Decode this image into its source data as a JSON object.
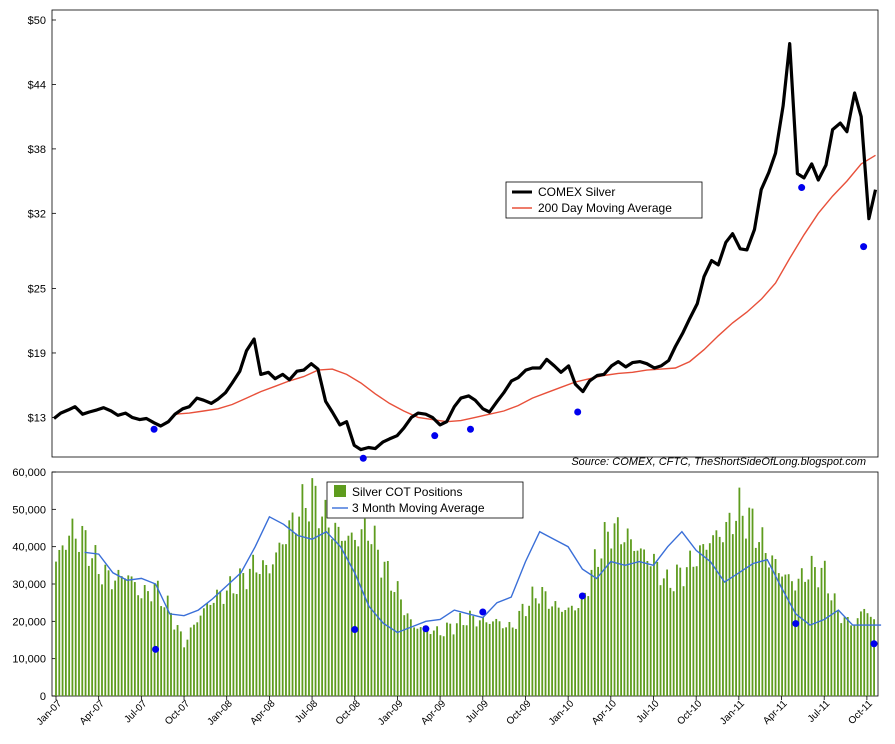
{
  "chart_data": [
    {
      "type": "line",
      "y_tick_labels": [
        "$13",
        "$19",
        "$25",
        "$32",
        "$38",
        "$44",
        "$50"
      ],
      "ylim": [
        9.5,
        50
      ],
      "y_ticks": [
        13,
        19,
        25,
        32,
        38,
        44,
        50
      ],
      "x_start": "2007-01",
      "x_end": "2011-10",
      "grid": false,
      "legend": {
        "placement": "center-right"
      },
      "source": "Source: COMEX, CFTC, TheShortSideOfLong.blogspot.com",
      "series": [
        {
          "name": "COMEX Silver",
          "color": "#000000",
          "x": [
            "2007-01-01",
            "2007-01-15",
            "2007-02-01",
            "2007-02-15",
            "2007-03-01",
            "2007-03-15",
            "2007-04-01",
            "2007-04-15",
            "2007-05-01",
            "2007-05-15",
            "2007-06-01",
            "2007-06-15",
            "2007-07-01",
            "2007-07-15",
            "2007-08-01",
            "2007-08-15",
            "2007-09-01",
            "2007-09-15",
            "2007-10-01",
            "2007-10-15",
            "2007-11-01",
            "2007-11-15",
            "2007-12-01",
            "2007-12-15",
            "2008-01-01",
            "2008-01-15",
            "2008-02-01",
            "2008-02-15",
            "2008-03-01",
            "2008-03-15",
            "2008-04-01",
            "2008-04-15",
            "2008-05-01",
            "2008-05-15",
            "2008-06-01",
            "2008-06-15",
            "2008-07-01",
            "2008-07-15",
            "2008-08-01",
            "2008-08-15",
            "2008-09-01",
            "2008-09-15",
            "2008-10-01",
            "2008-10-15",
            "2008-11-01",
            "2008-11-15",
            "2008-12-01",
            "2008-12-15",
            "2009-01-01",
            "2009-01-15",
            "2009-02-01",
            "2009-02-15",
            "2009-03-01",
            "2009-03-15",
            "2009-04-01",
            "2009-04-15",
            "2009-05-01",
            "2009-05-15",
            "2009-06-01",
            "2009-06-15",
            "2009-07-01",
            "2009-07-15",
            "2009-08-01",
            "2009-08-15",
            "2009-09-01",
            "2009-09-15",
            "2009-10-01",
            "2009-10-15",
            "2009-11-01",
            "2009-11-15",
            "2009-12-01",
            "2009-12-15",
            "2010-01-01",
            "2010-01-15",
            "2010-02-01",
            "2010-02-15",
            "2010-03-01",
            "2010-03-15",
            "2010-04-01",
            "2010-04-15",
            "2010-05-01",
            "2010-05-15",
            "2010-06-01",
            "2010-06-15",
            "2010-07-01",
            "2010-07-15",
            "2010-08-01",
            "2010-08-15",
            "2010-09-01",
            "2010-09-15",
            "2010-10-01",
            "2010-10-15",
            "2010-11-01",
            "2010-11-15",
            "2010-12-01",
            "2010-12-15",
            "2011-01-01",
            "2011-01-15",
            "2011-02-01",
            "2011-02-15",
            "2011-03-01",
            "2011-03-15",
            "2011-04-01",
            "2011-04-15",
            "2011-05-01",
            "2011-05-15",
            "2011-06-01",
            "2011-06-15",
            "2011-07-01",
            "2011-07-15",
            "2011-08-01",
            "2011-08-15",
            "2011-09-01",
            "2011-09-15",
            "2011-10-01",
            "2011-10-15"
          ],
          "values": [
            12.9,
            13.4,
            13.7,
            14.0,
            13.3,
            13.5,
            13.7,
            13.9,
            13.6,
            13.2,
            13.4,
            13.0,
            12.8,
            12.9,
            12.5,
            12.2,
            12.6,
            13.3,
            13.8,
            14.0,
            14.8,
            14.6,
            14.3,
            14.7,
            15.3,
            16.2,
            17.3,
            19.2,
            20.3,
            17.0,
            17.2,
            16.6,
            17.0,
            16.5,
            17.3,
            17.4,
            18.0,
            17.5,
            14.5,
            13.5,
            12.3,
            12.6,
            10.4,
            10.0,
            10.2,
            10.1,
            10.7,
            11.0,
            11.3,
            12.0,
            13.0,
            13.4,
            13.3,
            13.0,
            12.3,
            12.6,
            14.0,
            14.8,
            15.0,
            14.6,
            13.8,
            13.5,
            14.5,
            15.3,
            16.4,
            16.7,
            17.4,
            17.6,
            17.6,
            18.4,
            17.8,
            17.2,
            17.8,
            16.1,
            15.4,
            16.4,
            16.9,
            17.0,
            17.8,
            18.2,
            17.7,
            18.1,
            18.2,
            18.0,
            17.6,
            17.8,
            18.3,
            19.6,
            20.9,
            22.2,
            23.6,
            26.1,
            27.6,
            27.2,
            29.3,
            30.1,
            28.7,
            28.6,
            30.5,
            34.2,
            35.8,
            37.6,
            42.0,
            47.8,
            35.7,
            35.3,
            36.6,
            35.1,
            36.5,
            39.8,
            40.4,
            39.6,
            43.2,
            41.0,
            31.5,
            34.2
          ]
        },
        {
          "name": "200 Day Moving Average",
          "color": "#e8503a",
          "x": [
            "2007-09-15",
            "2007-10-15",
            "2007-11-15",
            "2007-12-15",
            "2008-01-15",
            "2008-02-15",
            "2008-03-15",
            "2008-04-15",
            "2008-05-15",
            "2008-06-15",
            "2008-07-15",
            "2008-08-15",
            "2008-09-15",
            "2008-10-15",
            "2008-11-15",
            "2008-12-15",
            "2009-01-15",
            "2009-02-15",
            "2009-03-15",
            "2009-04-15",
            "2009-05-15",
            "2009-06-15",
            "2009-07-15",
            "2009-08-15",
            "2009-09-15",
            "2009-10-15",
            "2009-11-15",
            "2009-12-15",
            "2010-01-15",
            "2010-02-15",
            "2010-03-15",
            "2010-04-15",
            "2010-05-15",
            "2010-06-15",
            "2010-07-15",
            "2010-08-15",
            "2010-09-15",
            "2010-10-15",
            "2010-11-15",
            "2010-12-15",
            "2011-01-15",
            "2011-02-15",
            "2011-03-15",
            "2011-04-15",
            "2011-05-15",
            "2011-06-15",
            "2011-07-15",
            "2011-08-15",
            "2011-09-15",
            "2011-10-15"
          ],
          "values": [
            13.3,
            13.4,
            13.6,
            13.8,
            14.2,
            14.8,
            15.4,
            15.9,
            16.4,
            16.8,
            17.4,
            17.5,
            17.0,
            16.2,
            15.2,
            14.3,
            13.6,
            13.0,
            12.8,
            12.6,
            12.7,
            13.0,
            13.3,
            13.6,
            14.1,
            14.8,
            15.3,
            15.8,
            16.3,
            16.6,
            16.9,
            17.1,
            17.2,
            17.4,
            17.5,
            17.6,
            18.2,
            19.3,
            20.6,
            21.8,
            22.8,
            24.0,
            25.5,
            27.8,
            30.0,
            32.0,
            33.6,
            35.0,
            36.6,
            37.4
          ]
        }
      ],
      "markers": {
        "color": "#0000ee",
        "x": [
          "2007-08-01",
          "2008-10-20",
          "2009-03-20",
          "2009-06-05",
          "2010-01-20",
          "2011-05-10",
          "2011-09-20"
        ],
        "values": [
          11.9,
          9.2,
          11.3,
          11.9,
          13.5,
          34.4,
          28.9
        ]
      }
    },
    {
      "type": "bar",
      "ylim": [
        0,
        60000
      ],
      "y_ticks": [
        0,
        10000,
        20000,
        30000,
        40000,
        50000,
        60000
      ],
      "y_tick_labels": [
        "0",
        "10,000",
        "20,000",
        "30,000",
        "40,000",
        "50,000",
        "60,000"
      ],
      "x_tick_labels": [
        "Jan-07",
        "Apr-07",
        "Jul-07",
        "Oct-07",
        "Jan-08",
        "Apr-08",
        "Jul-08",
        "Oct-08",
        "Jan-09",
        "Apr-09",
        "Jul-09",
        "Oct-09",
        "Jan-10",
        "Apr-10",
        "Jul-10",
        "Oct-10",
        "Jan-11",
        "Apr-11",
        "Jul-11",
        "Oct-11"
      ],
      "x_start": "2007-01",
      "x_end": "2011-10",
      "legend": {
        "placement": "top-center"
      },
      "series": [
        {
          "name": "Silver COT Positions",
          "color": "#5e9c1e",
          "anchors_month_index": [
            0,
            1,
            2,
            3,
            4,
            5,
            6,
            7,
            8,
            9,
            10,
            11,
            12,
            13,
            14,
            15,
            16,
            17,
            18,
            19,
            20,
            21,
            22,
            23,
            24,
            25,
            26,
            27,
            28,
            29,
            30,
            31,
            32,
            33,
            34,
            35,
            36,
            37,
            38,
            39,
            40,
            41,
            42,
            43,
            44,
            45,
            46,
            47,
            48,
            49,
            50,
            51,
            52,
            53,
            54,
            55,
            56,
            57,
            58
          ],
          "anchor_values": [
            36000,
            44000,
            42000,
            34000,
            31000,
            33000,
            27000,
            29000,
            23000,
            14000,
            21000,
            26000,
            28000,
            31000,
            35000,
            34000,
            42000,
            49000,
            54000,
            47000,
            43000,
            42000,
            45000,
            35000,
            28000,
            19000,
            18000,
            17000,
            19000,
            21000,
            20000,
            20000,
            18000,
            24000,
            28000,
            24000,
            23000,
            25000,
            37000,
            45000,
            43000,
            39000,
            36000,
            30000,
            33000,
            37000,
            42000,
            44000,
            50000,
            46000,
            38000,
            33000,
            30000,
            34000,
            33000,
            22000,
            19000,
            24000,
            14000
          ]
        },
        {
          "name": "3 Month Moving Average",
          "color": "#3a6fd8",
          "month_index": [
            2,
            3,
            4,
            5,
            6,
            7,
            8,
            9,
            10,
            11,
            12,
            13,
            14,
            15,
            16,
            17,
            18,
            19,
            20,
            21,
            22,
            23,
            24,
            25,
            26,
            27,
            28,
            29,
            30,
            31,
            32,
            33,
            34,
            35,
            36,
            37,
            38,
            39,
            40,
            41,
            42,
            43,
            44,
            45,
            46,
            47,
            48,
            49,
            50,
            51,
            52,
            53,
            54,
            55,
            56,
            57,
            58
          ],
          "values": [
            38500,
            38000,
            33000,
            31000,
            31500,
            30000,
            22000,
            21500,
            23000,
            26000,
            29500,
            33000,
            40000,
            48000,
            46000,
            43000,
            42000,
            44000,
            40000,
            33000,
            24000,
            19500,
            17000,
            18500,
            20000,
            20500,
            23000,
            22000,
            21000,
            25000,
            26500,
            36000,
            44000,
            42000,
            40000,
            34000,
            31500,
            36000,
            35000,
            36000,
            35000,
            40000,
            44000,
            39000,
            36000,
            30500,
            33000,
            35500,
            36500,
            29000,
            22000,
            19000,
            20500,
            23000,
            19000,
            19000,
            19000
          ]
        }
      ],
      "markers": {
        "color": "#0000ee",
        "month_index": [
          7,
          21,
          26,
          30,
          37,
          52,
          57.5
        ],
        "values": [
          12500,
          17800,
          18000,
          22500,
          26800,
          19400,
          14000
        ]
      }
    }
  ]
}
